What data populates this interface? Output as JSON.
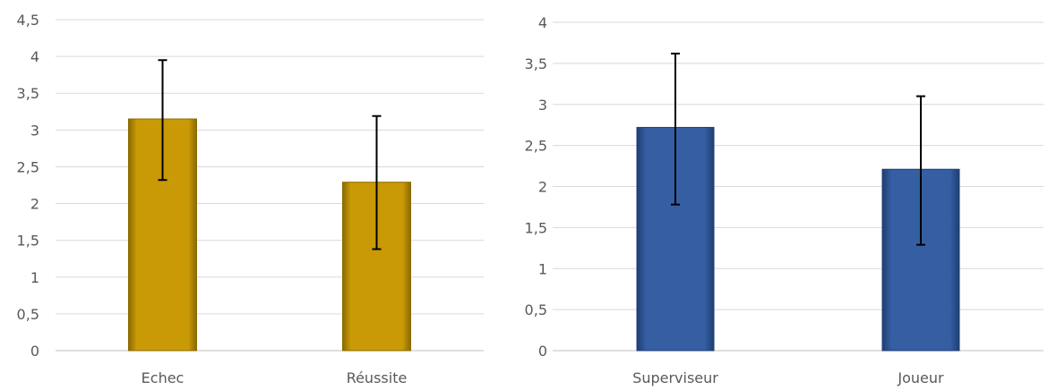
{
  "chart_data": [
    {
      "type": "bar",
      "title": "",
      "xlabel": "",
      "ylabel": "",
      "categories": [
        "Echec",
        "Réussite"
      ],
      "values": [
        3.15,
        2.29
      ],
      "error_low": [
        2.32,
        1.38
      ],
      "error_high": [
        3.95,
        3.19
      ],
      "ylim": [
        0,
        4.5
      ],
      "yticks": [
        0,
        0.5,
        1,
        1.5,
        2,
        2.5,
        3,
        3.5,
        4,
        4.5
      ],
      "ytick_labels": [
        "0",
        "0,5",
        "1",
        "1,5",
        "2",
        "2,5",
        "3",
        "3,5",
        "4",
        "4,5"
      ],
      "grid": true,
      "color": "#C99A06",
      "color_dark": "#8A6A00"
    },
    {
      "type": "bar",
      "title": "",
      "xlabel": "",
      "ylabel": "",
      "categories": [
        "Superviseur",
        "Joueur"
      ],
      "values": [
        2.72,
        2.21
      ],
      "error_low": [
        1.78,
        1.29
      ],
      "error_high": [
        3.62,
        3.1
      ],
      "ylim": [
        0,
        4
      ],
      "yticks": [
        0,
        0.5,
        1,
        1.5,
        2,
        2.5,
        3,
        3.5,
        4
      ],
      "ytick_labels": [
        "0",
        "0,5",
        "1",
        "1,5",
        "2",
        "2,5",
        "3",
        "3,5",
        "4"
      ],
      "grid": true,
      "color": "#355EA3",
      "color_dark": "#1F3E73"
    }
  ]
}
